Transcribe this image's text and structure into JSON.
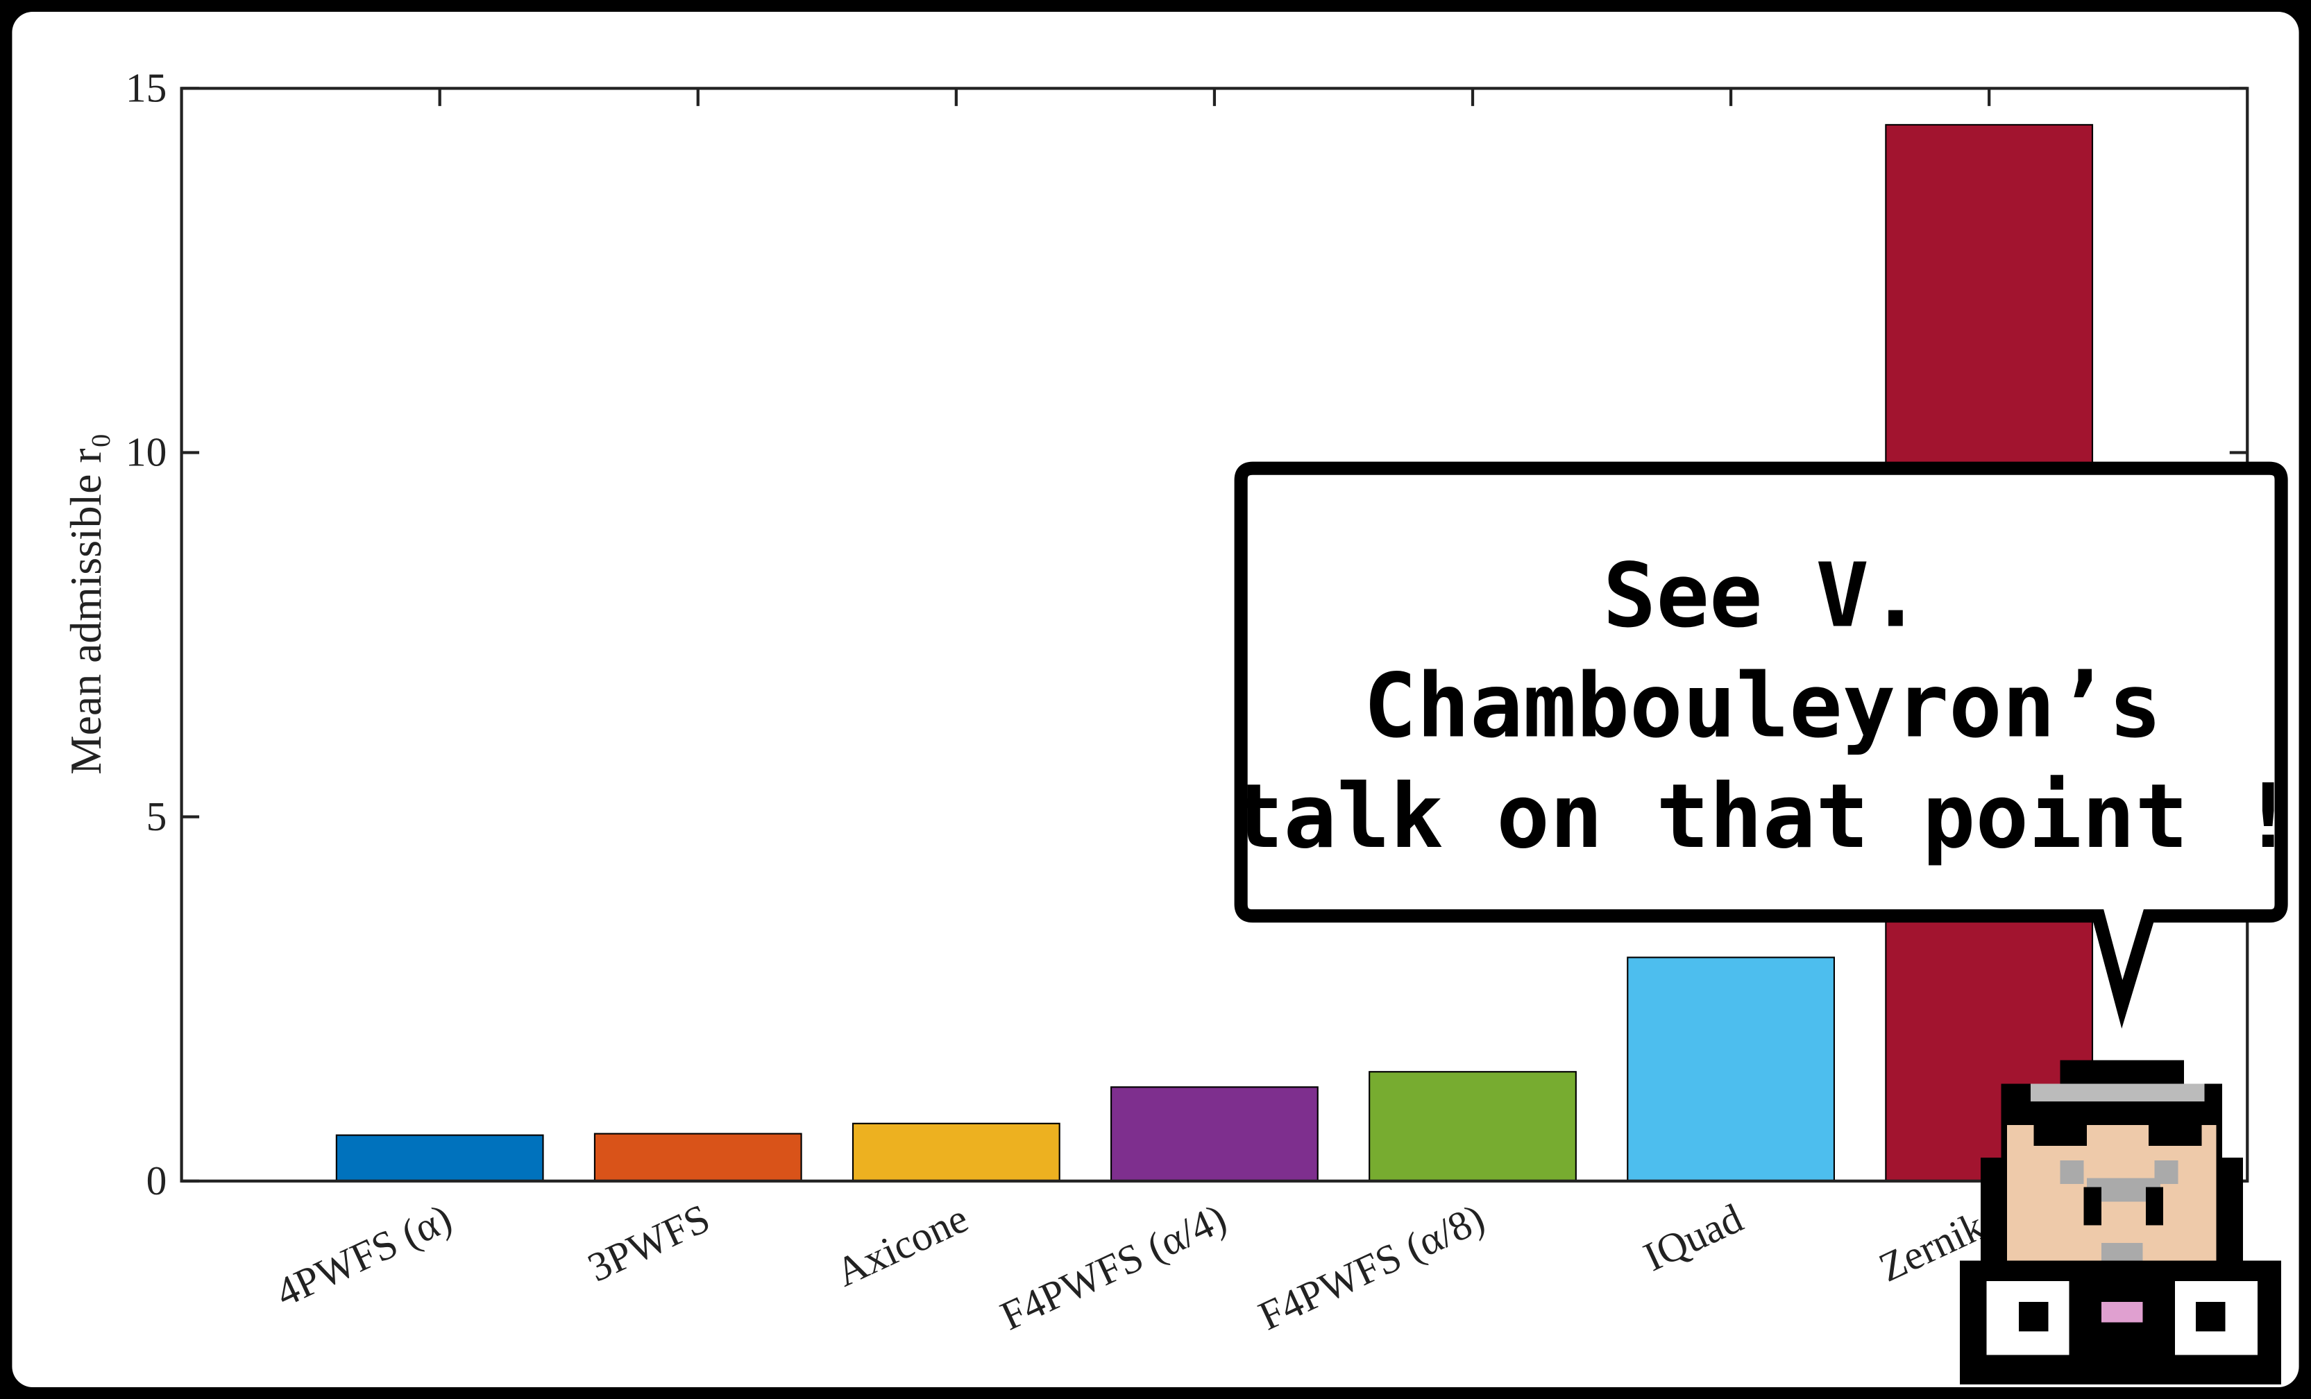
{
  "chart_data": {
    "type": "bar",
    "ylabel": "Mean admissible r₀",
    "categories": [
      "4PWFS (α)",
      "3PWFS",
      "Axicone",
      "F4PWFS (α/4)",
      "F4PWFS (α/8)",
      "IQuad",
      "Zernike"
    ],
    "values": [
      0.63,
      0.65,
      0.79,
      1.29,
      1.5,
      3.07,
      14.5
    ],
    "colors": [
      "#0072bd",
      "#d95319",
      "#edb120",
      "#7e2f8e",
      "#77ac30",
      "#4dbeee",
      "#a2142f"
    ],
    "ylim": [
      0,
      15
    ],
    "yticks": [
      0,
      5,
      10,
      15
    ],
    "annotation": [
      "See V.",
      "Chambouleyron’s",
      "talk on that point !"
    ]
  }
}
